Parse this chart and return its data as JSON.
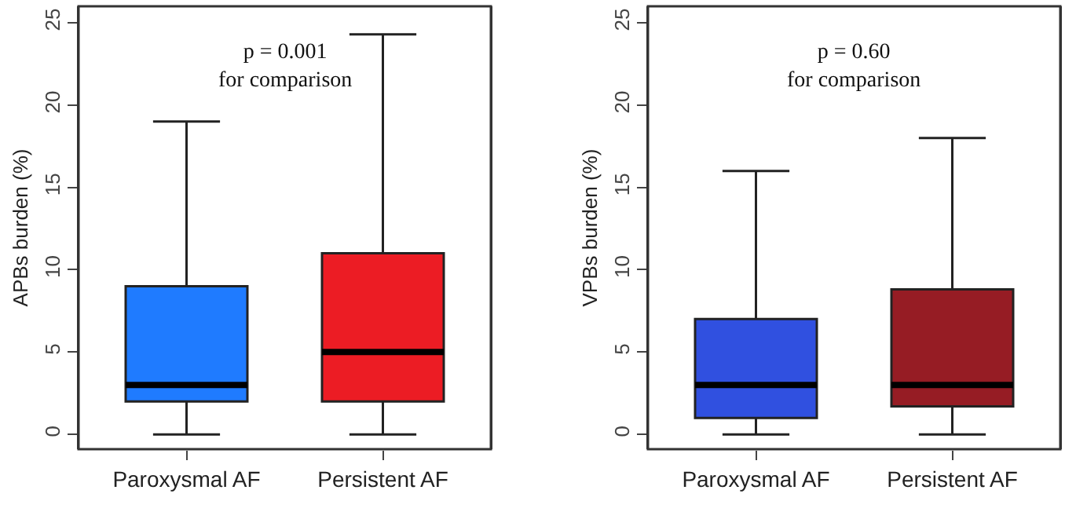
{
  "chart_data": [
    {
      "type": "box",
      "ylabel": "APBs burden (%)",
      "categories": [
        "Paroxysmal AF",
        "Persistent AF"
      ],
      "colors": [
        "#1f7bff",
        "#ec1c24"
      ],
      "boxes": [
        {
          "low": 0,
          "q1": 2,
          "median": 3,
          "q3": 9,
          "high": 19
        },
        {
          "low": 0,
          "q1": 2,
          "median": 5,
          "q3": 11,
          "high": 24.3
        }
      ],
      "ylim": [
        -0.9,
        26
      ],
      "yticks": [
        0,
        5,
        10,
        15,
        20,
        25
      ],
      "annotations": [
        "p = 0.001\nfor comparison"
      ]
    },
    {
      "type": "box",
      "ylabel": "VPBs burden (%)",
      "categories": [
        "Paroxysmal AF",
        "Persistent AF"
      ],
      "colors": [
        "#3050e0",
        "#961c24"
      ],
      "boxes": [
        {
          "low": 0,
          "q1": 1,
          "median": 3,
          "q3": 7,
          "high": 16
        },
        {
          "low": 0,
          "q1": 1.7,
          "median": 3,
          "q3": 8.8,
          "high": 18
        }
      ],
      "ylim": [
        -0.9,
        26
      ],
      "yticks": [
        0,
        5,
        10,
        15,
        20,
        25
      ],
      "annotations": [
        "p = 0.60\nfor comparison"
      ]
    }
  ]
}
